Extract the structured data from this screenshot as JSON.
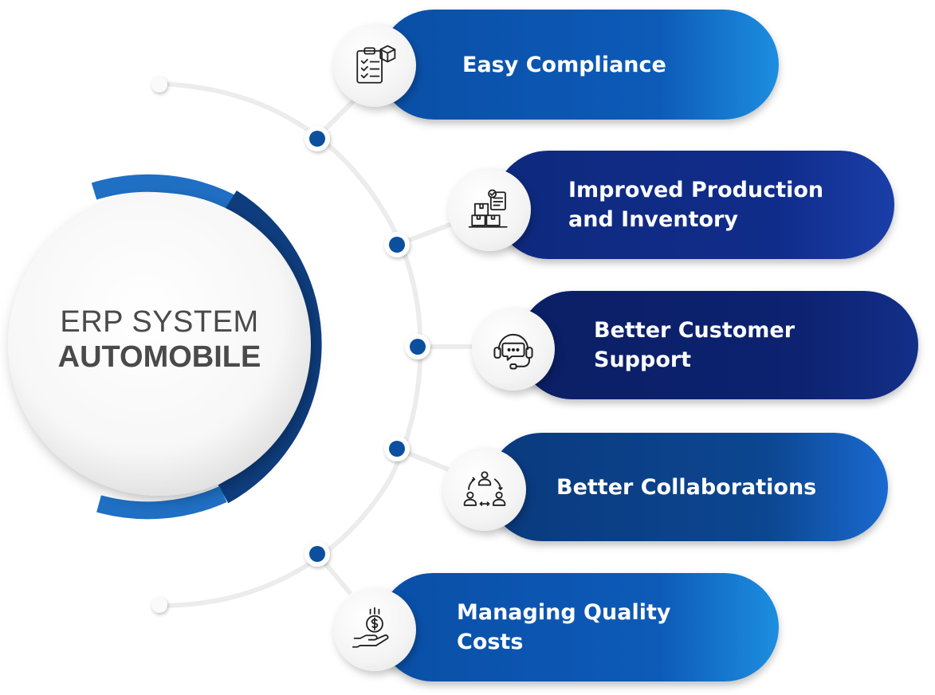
{
  "center": {
    "line1": "ERP SYSTEM",
    "line2": "AUTOMOBILE"
  },
  "items": [
    {
      "label": "Easy Compliance",
      "icon": "clipboard-checklist-box-icon"
    },
    {
      "label": "Improved Production\nand Inventory",
      "icon": "inventory-boxes-icon"
    },
    {
      "label": "Better Customer\nSupport",
      "icon": "headset-chat-support-icon"
    },
    {
      "label": "Better Collaborations",
      "icon": "team-collaboration-cycle-icon"
    },
    {
      "label": "Managing Quality\nCosts",
      "icon": "hand-dollar-coin-icon"
    }
  ],
  "colors": {
    "pill_1": [
      "#0a58b0",
      "#0d5ab8",
      "#1d8ee0"
    ],
    "pill_2": [
      "#0e2a7e",
      "#102c8a",
      "#1a3ea8"
    ],
    "pill_3": [
      "#0b1f66",
      "#0d2270",
      "#132f88"
    ],
    "pill_4": [
      "#0a3a7e",
      "#0c4690",
      "#1a6ad0"
    ],
    "pill_5": [
      "#0a52a8",
      "#0d5ab8",
      "#1d8ee0"
    ],
    "ring_dark": "#0e3d7e",
    "ring_light": "#1f6fc4",
    "dot": "#0b4f9e",
    "text_dark": "#4a4a4a"
  }
}
